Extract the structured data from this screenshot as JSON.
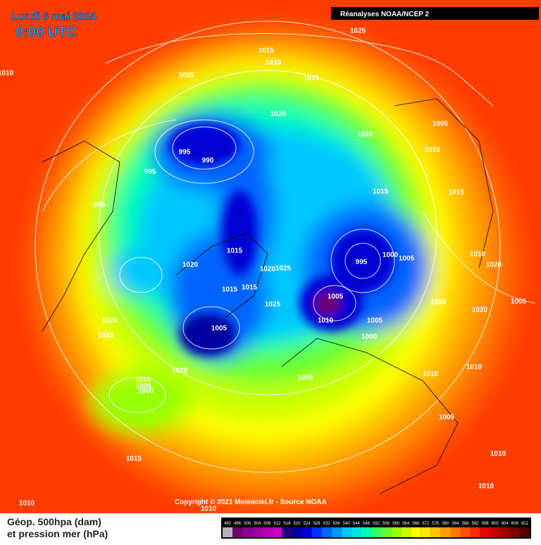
{
  "header": {
    "date": "Lundi 6 mai 2024",
    "time": "0:00 UTC",
    "source_box": "Réanalyses NOAA/NCEP 2"
  },
  "footer": {
    "copyright": "Copyright © 2021 Meteociel.fr - Source NOAA",
    "legend_line1": "Géop. 500hpa (dam)",
    "legend_line2": "et pression mer (hPa)"
  },
  "isobar_labels": [
    1025,
    1015,
    1010,
    1025,
    1015,
    1020,
    1025,
    1005,
    1010,
    995,
    990,
    995,
    1015,
    1015,
    995,
    1015,
    1000,
    1005,
    995,
    1010,
    1020,
    1020,
    1020,
    1025,
    1005,
    1015,
    1015,
    1025,
    1020,
    1020,
    1005,
    1010,
    1005,
    1000,
    1005,
    1020,
    1025,
    1020,
    1010,
    1010,
    1005,
    1010,
    1005,
    1000,
    1005,
    1015,
    1010,
    1010,
    1010,
    1010,
    1010
  ],
  "colorbar": {
    "values": [
      492,
      496,
      500,
      504,
      508,
      512,
      516,
      520,
      524,
      528,
      532,
      536,
      540,
      544,
      548,
      552,
      556,
      560,
      564,
      568,
      572,
      576,
      580,
      584,
      588,
      592,
      596,
      600,
      604,
      608,
      612
    ],
    "colors": [
      "#b4b4b4",
      "#6e006e",
      "#8c008c",
      "#a000a0",
      "#b400b4",
      "#c800c8",
      "#1e0078",
      "#0000a0",
      "#0000d2",
      "#0032ff",
      "#0064ff",
      "#0096ff",
      "#00c8ff",
      "#00e6e6",
      "#00ffb4",
      "#32ff64",
      "#64ff32",
      "#96ff00",
      "#c8ff00",
      "#ffff00",
      "#ffe600",
      "#ffc800",
      "#ffa000",
      "#ff7800",
      "#ff5000",
      "#ff2800",
      "#e60000",
      "#c80000",
      "#a00000",
      "#780000",
      "#500000"
    ]
  }
}
